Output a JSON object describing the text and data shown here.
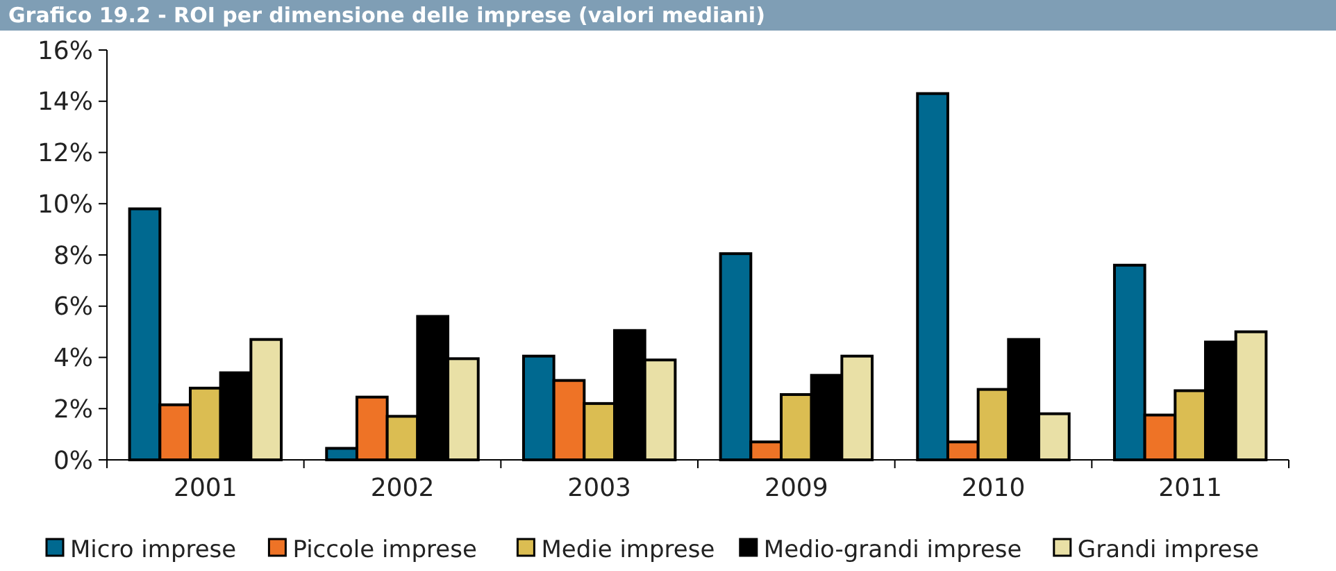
{
  "chart_data": {
    "type": "bar",
    "title": "Grafico 19.2 - ROI per dimensione delle imprese (valori mediani)",
    "categories": [
      "2001",
      "2002",
      "2003",
      "2009",
      "2010",
      "2011"
    ],
    "series": [
      {
        "name": "Micro imprese",
        "color": "#006990",
        "values": [
          9.8,
          0.45,
          4.05,
          8.05,
          14.3,
          7.6
        ]
      },
      {
        "name": "Piccole imprese",
        "color": "#ee7326",
        "values": [
          2.15,
          2.45,
          3.1,
          0.7,
          0.7,
          1.75
        ]
      },
      {
        "name": "Medie imprese",
        "color": "#dbbd52",
        "values": [
          2.8,
          1.7,
          2.2,
          2.55,
          2.75,
          2.7
        ]
      },
      {
        "name": "Medio-grandi imprese",
        "color": "#000000",
        "values": [
          3.4,
          5.6,
          5.05,
          3.3,
          4.7,
          4.6
        ]
      },
      {
        "name": "Grandi imprese",
        "color": "#e9e0a6",
        "values": [
          4.7,
          3.95,
          3.9,
          4.05,
          1.8,
          5.0
        ]
      }
    ],
    "ylim": [
      0,
      16
    ],
    "yticks": [
      {
        "value": 0,
        "label": "0%"
      },
      {
        "value": 2,
        "label": "2%"
      },
      {
        "value": 4,
        "label": "4%"
      },
      {
        "value": 6,
        "label": "6%"
      },
      {
        "value": 8,
        "label": "8%"
      },
      {
        "value": 10,
        "label": "10%"
      },
      {
        "value": 12,
        "label": "12%"
      },
      {
        "value": 14,
        "label": "14%"
      },
      {
        "value": 16,
        "label": "16%"
      }
    ],
    "grid": false,
    "legend": "bottom"
  }
}
